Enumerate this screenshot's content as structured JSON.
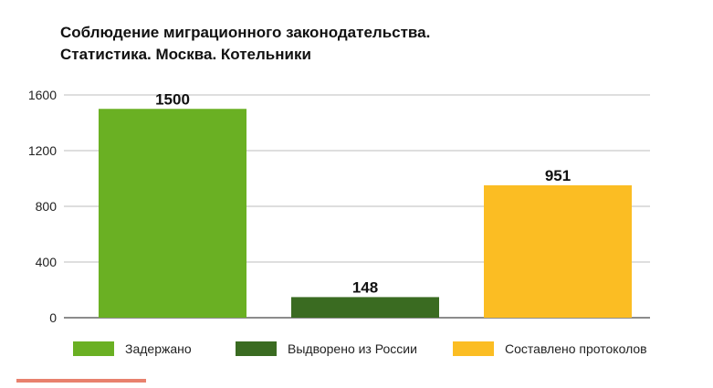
{
  "colors": {
    "accent": "#e8816e",
    "series": [
      "#6ab023",
      "#3a6b21",
      "#fbbd23"
    ],
    "axis": "#666666",
    "grid": "#bdbdbd"
  },
  "chart_data": {
    "type": "bar",
    "title_lines": [
      "Соблюдение миграционного законодательства.",
      "Статистика. Москва. Котельники"
    ],
    "categories": [
      "Задержано",
      "Выдворено из России",
      "Составлено протоколов"
    ],
    "values": [
      1500,
      148,
      951
    ],
    "data_labels": [
      "1500",
      "148",
      "951"
    ],
    "yticks": [
      0,
      400,
      800,
      1200,
      1600
    ],
    "ylim": [
      0,
      1600
    ],
    "grid": true,
    "legend_position": "bottom"
  }
}
